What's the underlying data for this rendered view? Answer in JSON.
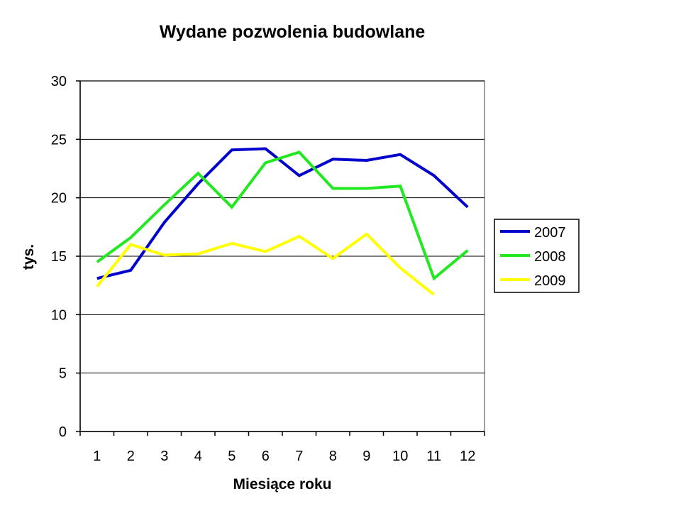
{
  "chart_data": {
    "type": "line",
    "title": "Wydane pozwolenia budowlane",
    "xlabel": "Miesiące roku",
    "ylabel": "tys.",
    "categories": [
      "1",
      "2",
      "3",
      "4",
      "5",
      "6",
      "7",
      "8",
      "9",
      "10",
      "11",
      "12"
    ],
    "y_ticks": [
      "0",
      "5",
      "10",
      "15",
      "20",
      "25",
      "30"
    ],
    "ylim": [
      0,
      30
    ],
    "grid": "horizontal",
    "legend_position": "right",
    "series": [
      {
        "name": "2007",
        "color": "#0000CC",
        "values": [
          13.1,
          13.8,
          17.9,
          21.2,
          24.1,
          24.2,
          21.9,
          23.3,
          23.2,
          23.7,
          21.9,
          19.2
        ]
      },
      {
        "name": "2008",
        "color": "#22E822",
        "values": [
          14.5,
          16.6,
          19.4,
          22.1,
          19.2,
          23.0,
          23.9,
          20.8,
          20.8,
          21.0,
          13.1,
          15.5
        ]
      },
      {
        "name": "2009",
        "color": "#FFFF00",
        "values": [
          12.4,
          16.0,
          15.1,
          15.2,
          16.1,
          15.4,
          16.7,
          14.8,
          16.9,
          14.0,
          11.7,
          null
        ]
      }
    ]
  }
}
